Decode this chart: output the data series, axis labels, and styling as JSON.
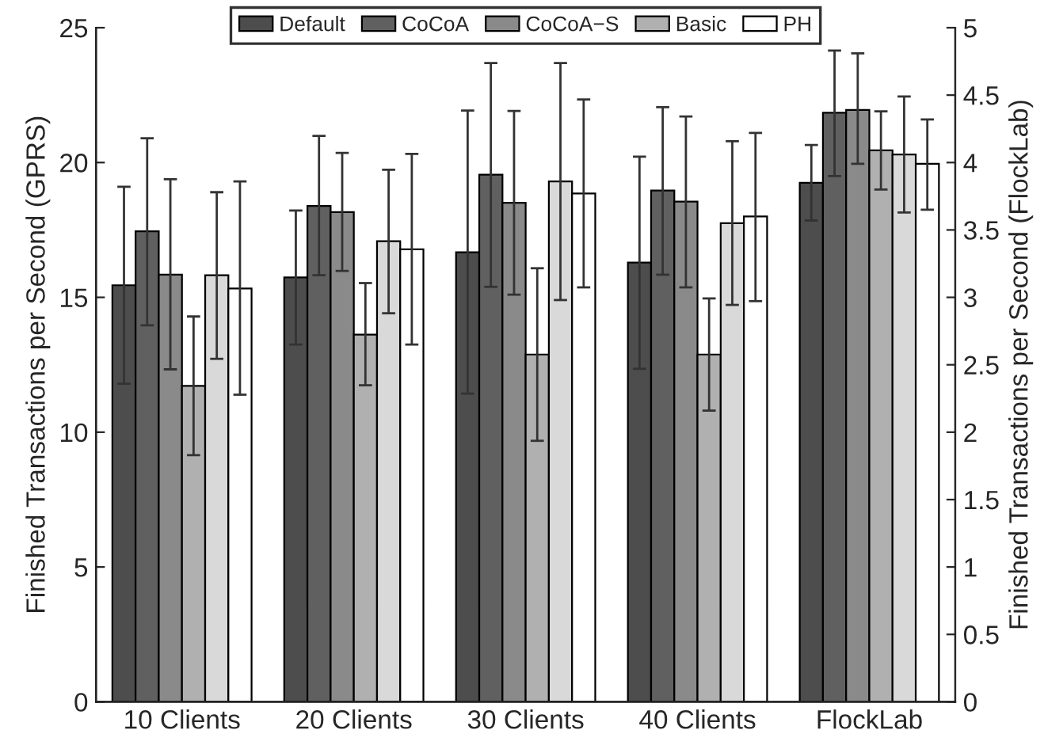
{
  "chart_data": {
    "type": "bar",
    "categories": [
      "10 Clients",
      "20 Clients",
      "30 Clients",
      "40 Clients",
      "FlockLab"
    ],
    "ylabel": "Finished Transactions per Second (GPRS)",
    "y2label": "Finished Transactions per Second (FlockLab)",
    "ylim": [
      0,
      25
    ],
    "yticks": [
      0,
      5,
      10,
      15,
      20,
      25
    ],
    "y2lim": [
      0,
      5
    ],
    "y2ticks": [
      0,
      0.5,
      1,
      1.5,
      2,
      2.5,
      3,
      3.5,
      4,
      4.5,
      5
    ],
    "legend": "top",
    "grid": false,
    "series": [
      {
        "name": "Default",
        "color": "#4d4d4d",
        "values": [
          15.45,
          15.74,
          16.67,
          16.29,
          null
        ],
        "errors": [
          [
            11.8,
            19.1
          ],
          [
            13.25,
            18.22
          ],
          [
            11.43,
            21.93
          ],
          [
            12.35,
            20.22
          ],
          null
        ]
      },
      {
        "name": "CoCoA",
        "color": "#606060",
        "values": [
          17.45,
          18.39,
          19.55,
          18.96,
          null
        ],
        "errors": [
          [
            13.96,
            20.9
          ],
          [
            15.82,
            20.99
          ],
          [
            15.39,
            23.69
          ],
          [
            15.84,
            22.05
          ],
          null
        ]
      },
      {
        "name": "CoCoA−S",
        "color": "#8a8a8a",
        "values": [
          15.84,
          18.16,
          18.51,
          18.55,
          null
        ],
        "errors": [
          [
            12.33,
            19.38
          ],
          [
            15.98,
            20.36
          ],
          [
            15.1,
            21.91
          ],
          [
            15.37,
            21.71
          ],
          null
        ]
      },
      {
        "name": "Basic",
        "color": "#b0b0b0",
        "values": [
          11.72,
          13.62,
          12.88,
          12.88,
          null
        ],
        "errors": [
          [
            9.15,
            14.29
          ],
          [
            11.74,
            15.53
          ],
          [
            9.68,
            16.08
          ],
          [
            10.8,
            14.96
          ],
          null
        ]
      },
      {
        "color": "#d9d9d9",
        "values": [
          15.82,
          17.08,
          19.3,
          17.75,
          null
        ],
        "errors": [
          [
            12.72,
            18.9
          ],
          [
            14.41,
            19.73
          ],
          [
            14.9,
            23.69
          ],
          [
            14.72,
            20.79
          ],
          null
        ]
      },
      {
        "name": "PH",
        "color": "#ffffff",
        "values": [
          15.33,
          16.78,
          18.85,
          18.0,
          null
        ],
        "errors": [
          [
            11.39,
            19.3
          ],
          [
            13.25,
            20.32
          ],
          [
            15.37,
            22.34
          ],
          [
            14.86,
            21.1
          ],
          null
        ]
      },
      {
        "axis": "y2",
        "color": "#4d4d4d",
        "values": [
          null,
          null,
          null,
          null,
          3.85
        ],
        "errors": [
          null,
          null,
          null,
          null,
          [
            3.57,
            4.13
          ]
        ]
      },
      {
        "axis": "y2",
        "color": "#606060",
        "values": [
          null,
          null,
          null,
          null,
          4.37
        ],
        "errors": [
          null,
          null,
          null,
          null,
          [
            3.9,
            4.83
          ]
        ]
      },
      {
        "axis": "y2",
        "color": "#8a8a8a",
        "values": [
          null,
          null,
          null,
          null,
          4.39
        ],
        "errors": [
          null,
          null,
          null,
          null,
          [
            3.99,
            4.81
          ]
        ]
      },
      {
        "axis": "y2",
        "color": "#b0b0b0",
        "values": [
          null,
          null,
          null,
          null,
          4.09
        ],
        "errors": [
          null,
          null,
          null,
          null,
          [
            3.8,
            4.38
          ]
        ]
      },
      {
        "axis": "y2",
        "color": "#d9d9d9",
        "values": [
          null,
          null,
          null,
          null,
          4.06
        ],
        "errors": [
          null,
          null,
          null,
          null,
          [
            3.63,
            4.49
          ]
        ]
      },
      {
        "axis": "y2",
        "color": "#ffffff",
        "values": [
          null,
          null,
          null,
          null,
          3.99
        ],
        "errors": [
          null,
          null,
          null,
          null,
          [
            3.65,
            4.32
          ]
        ]
      }
    ]
  }
}
